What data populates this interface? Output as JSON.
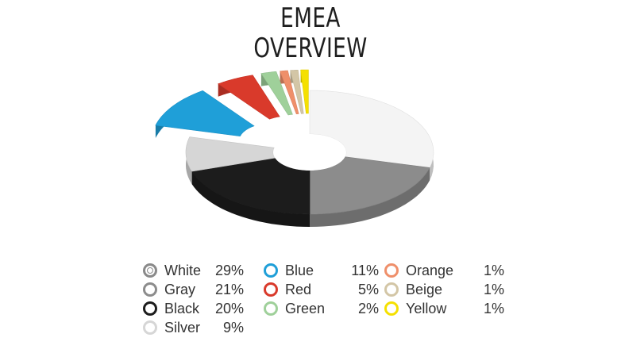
{
  "title_lines": [
    "EMEA",
    "OVERVIEW"
  ],
  "chart_data": {
    "type": "pie",
    "title": "EMEA OVERVIEW",
    "unit": "%",
    "categories": [
      "White",
      "Gray",
      "Black",
      "Silver",
      "Blue",
      "Red",
      "Green",
      "Orange",
      "Beige",
      "Yellow"
    ],
    "values": [
      29,
      21,
      20,
      9,
      11,
      5,
      2,
      1,
      1,
      1
    ],
    "labels": [
      "29%",
      "21%",
      "20%",
      "9%",
      "11%",
      "5%",
      "2%",
      "1%",
      "1%",
      "1%"
    ],
    "colors": [
      "#f4f4f4",
      "#8c8c8c",
      "#1c1c1c",
      "#d6d6d6",
      "#1f9fd8",
      "#d93a2b",
      "#9fd09a",
      "#ef8f6a",
      "#d3c6a6",
      "#f5e000"
    ],
    "exploded": [
      "Blue",
      "Red",
      "Green",
      "Orange",
      "Beige",
      "Yellow"
    ],
    "legend_position": "bottom"
  }
}
